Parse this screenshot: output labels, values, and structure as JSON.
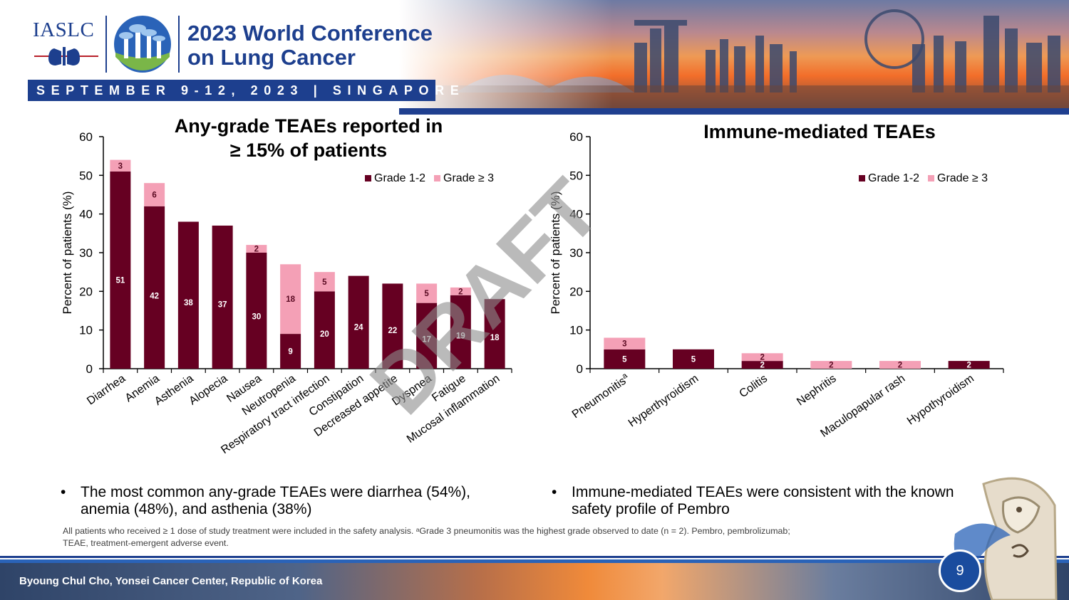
{
  "header": {
    "org": "IASLC",
    "conference_title_line1": "2023 World Conference",
    "conference_title_line2": "on Lung Cancer",
    "date_location": "SEPTEMBER 9-12, 2023 | SINGAPORE"
  },
  "watermark": "DRAFT",
  "chart_data": [
    {
      "type": "bar",
      "stacked": true,
      "title_line1": "Any-grade TEAEs reported in",
      "title_line2": "≥ 15% of patients",
      "ylabel": "Percent of patients (%)",
      "xlabel": "",
      "ylim": [
        0,
        60
      ],
      "yticks": [
        "0",
        "10",
        "20",
        "30",
        "40",
        "50",
        "60"
      ],
      "legend_position": "top-right",
      "categories": [
        "Diarrhea",
        "Anemia",
        "Asthenia",
        "Alopecia",
        "Nausea",
        "Neutropenia",
        "Respiratory tract infection",
        "Constipation",
        "Decreased appetite",
        "Dyspnea",
        "Fatigue",
        "Mucosal inflammation"
      ],
      "series": [
        {
          "name": "Grade 1-2",
          "color": "#660022",
          "values": [
            51,
            42,
            38,
            37,
            30,
            9,
            20,
            24,
            22,
            17,
            19,
            18
          ]
        },
        {
          "name": "Grade ≥ 3",
          "color": "#f4a0b6",
          "values": [
            3,
            6,
            0,
            0,
            2,
            18,
            5,
            0,
            0,
            5,
            2,
            0
          ]
        }
      ]
    },
    {
      "type": "bar",
      "stacked": true,
      "title": "Immune-mediated TEAEs",
      "ylabel": "Percent of patients (%)",
      "xlabel": "",
      "ylim": [
        0,
        60
      ],
      "yticks": [
        "0",
        "10",
        "20",
        "30",
        "40",
        "50",
        "60"
      ],
      "legend_position": "top-right",
      "categories": [
        "Pneumonitis",
        "Hyperthyroidism",
        "Colitis",
        "Nephritis",
        "Maculopapular rash",
        "Hypothyroidism"
      ],
      "category_superscripts": [
        "a",
        "",
        "",
        "",
        "",
        ""
      ],
      "series": [
        {
          "name": "Grade 1-2",
          "color": "#660022",
          "values": [
            5,
            5,
            2,
            0,
            0,
            2
          ]
        },
        {
          "name": "Grade ≥ 3",
          "color": "#f4a0b6",
          "values": [
            3,
            0,
            2,
            2,
            2,
            0
          ]
        }
      ]
    }
  ],
  "bullets": {
    "bullet_symbol": "•",
    "left_line1": "The most common any-grade TEAEs were diarrhea (54%),",
    "left_line2": "anemia (48%), and asthenia (38%)",
    "right_line1": "Immune-mediated TEAEs were consistent with the known",
    "right_line2": "safety profile of Pembro"
  },
  "footnote": {
    "line1": "All patients who received ≥ 1 dose of study treatment were included in the safety analysis. ᵃGrade 3 pneumonitis was the highest grade observed to date (n = 2). Pembro, pembrolizumab;",
    "line2": "TEAE, treatment-emergent adverse event."
  },
  "footer": {
    "presenter": "Byoung Chul Cho, Yonsei Cancer Center, Republic of Korea",
    "page_number": "9"
  }
}
